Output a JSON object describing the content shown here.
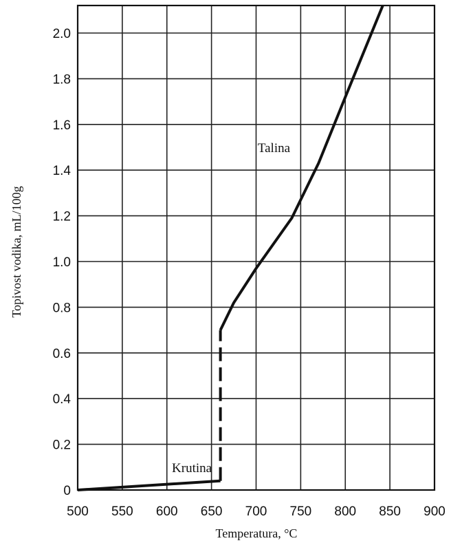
{
  "chart_data": {
    "type": "line",
    "xlabel": "Temperatura, °C",
    "ylabel": "Topivost vodika, mL/100g",
    "xlim": [
      500,
      900
    ],
    "ylim": [
      0,
      2.1
    ],
    "x_ticks": [
      500,
      550,
      600,
      650,
      700,
      750,
      800,
      850,
      900
    ],
    "x_tick_labels": [
      "500",
      "550",
      "600",
      "650",
      "700",
      "750",
      "800",
      "850",
      "900"
    ],
    "y_ticks": [
      0,
      0.2,
      0.4,
      0.6,
      0.8,
      1.0,
      1.2,
      1.4,
      1.6,
      1.8,
      2.0
    ],
    "y_tick_labels": [
      "0",
      "0.2",
      "0.4",
      "0.6",
      "0.8",
      "1.0",
      "1.2",
      "1.4",
      "1.6",
      "1.8",
      "2.0"
    ],
    "grid": true,
    "series": [
      {
        "points": [
          {
            "x": 500,
            "y": 0.0
          },
          {
            "x": 660,
            "y": 0.04
          }
        ]
      },
      {
        "dashed": true,
        "points": [
          {
            "x": 660,
            "y": 0.04
          },
          {
            "x": 660,
            "y": 0.7
          }
        ]
      },
      {
        "points": [
          {
            "x": 660,
            "y": 0.7
          },
          {
            "x": 675,
            "y": 0.82
          },
          {
            "x": 700,
            "y": 0.97
          },
          {
            "x": 740,
            "y": 1.19
          },
          {
            "x": 770,
            "y": 1.43
          },
          {
            "x": 800,
            "y": 1.72
          },
          {
            "x": 842,
            "y": 2.12
          }
        ]
      }
    ],
    "annotations": [
      {
        "text": "Talina",
        "x": 720,
        "y": 1.5
      },
      {
        "text": "Krutina",
        "x": 628,
        "y": 0.1
      }
    ]
  }
}
